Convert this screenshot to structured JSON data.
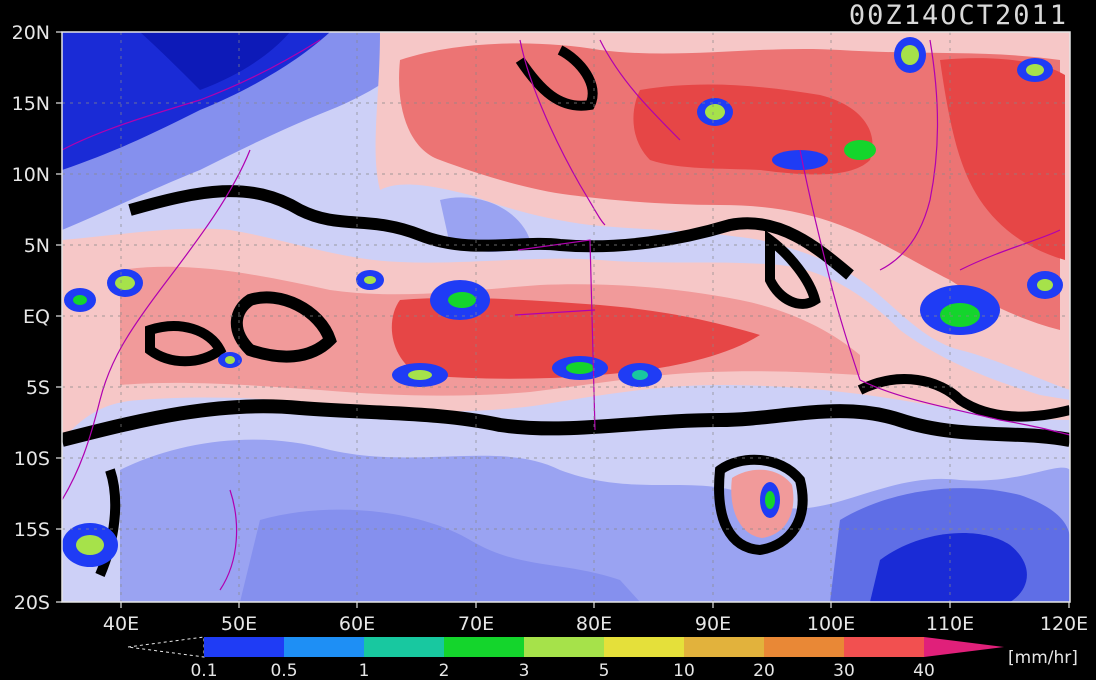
{
  "header": {
    "title": "00Z14OCT2011"
  },
  "map": {
    "type": "precipitation-rate-map",
    "lat_labels": [
      "20N",
      "15N",
      "10N",
      "5N",
      "EQ",
      "5S",
      "10S",
      "15S",
      "20S"
    ],
    "lon_labels": [
      "40E",
      "50E",
      "60E",
      "70E",
      "80E",
      "90E",
      "100E",
      "110E",
      "120E"
    ],
    "colors": {
      "dry_dark_blue": "#1a2bd6",
      "dry_mid_blue": "#5f6ee6",
      "dry_light_blue": "#9aa3f2",
      "dry_pale": "#cdd0f7",
      "rain_light_pink": "#f6c7c7",
      "rain_pink": "#f19a9a",
      "rain_salmon": "#ec7474",
      "rain_red": "#e64646",
      "contour_zero": "#000000",
      "coastline": "#b000b0"
    }
  },
  "legend": {
    "ticks": [
      "0.1",
      "0.5",
      "1",
      "2",
      "3",
      "5",
      "10",
      "20",
      "30",
      "40"
    ],
    "unit": "[mm/hr]",
    "colors": [
      "#1f3cf5",
      "#1e8ff5",
      "#18c8a0",
      "#14d52c",
      "#a6e24a",
      "#e5e03a",
      "#e2b23c",
      "#e98836",
      "#f25050",
      "#e0207a"
    ]
  }
}
